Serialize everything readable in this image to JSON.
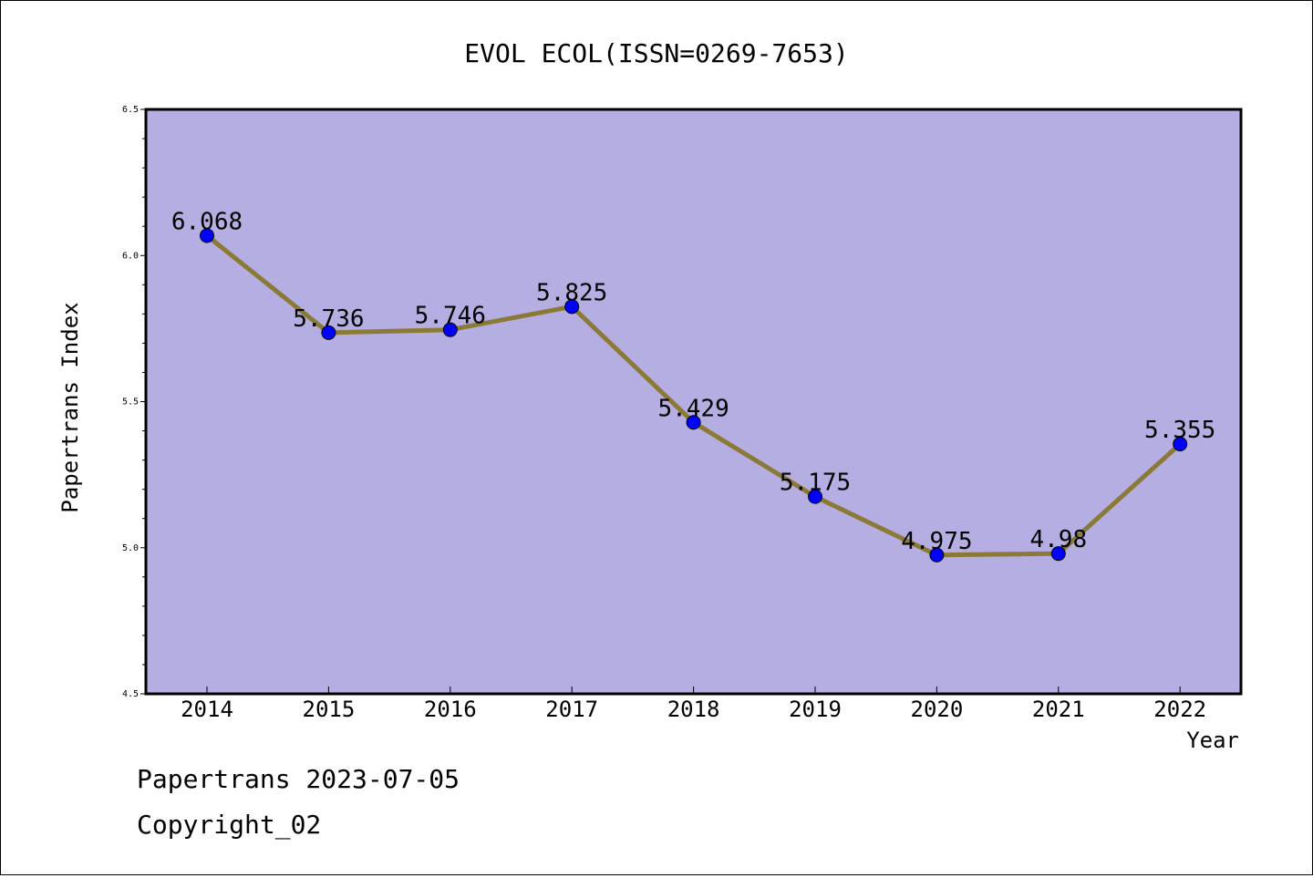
{
  "chart_data": {
    "type": "line",
    "title": "EVOL ECOL(ISSN=0269-7653)",
    "xlabel": "Year",
    "ylabel": "Papertrans Index",
    "categories": [
      "2014",
      "2015",
      "2016",
      "2017",
      "2018",
      "2019",
      "2020",
      "2021",
      "2022"
    ],
    "series": [
      {
        "values": [
          6.068,
          5.736,
          5.746,
          5.825,
          5.429,
          5.175,
          4.975,
          4.98,
          5.355
        ]
      }
    ],
    "data_labels": [
      "6.068",
      "5.736",
      "5.746",
      "5.825",
      "5.429",
      "5.175",
      "4.975",
      "4.98",
      "5.355"
    ],
    "ylim": [
      4.5,
      6.5
    ],
    "yticks": [
      "4.5",
      "5.0",
      "5.5",
      "6.0",
      "6.5"
    ],
    "grid": false,
    "colors": {
      "plot_background": "#b4aee2",
      "line": "#8b7a35",
      "marker": "#0000ff"
    }
  },
  "footer": {
    "date_text": "Papertrans 2023-07-05",
    "copyright_text": "Copyright_02"
  }
}
